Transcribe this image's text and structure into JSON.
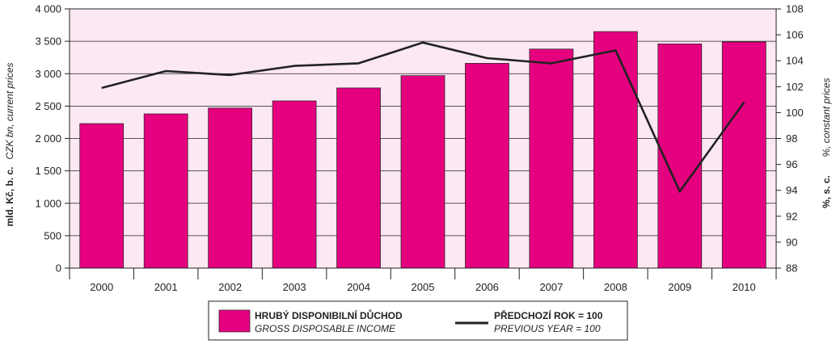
{
  "chart_data": {
    "type": "bar",
    "categories": [
      "2000",
      "2001",
      "2002",
      "2003",
      "2004",
      "2005",
      "2006",
      "2007",
      "2008",
      "2009",
      "2010"
    ],
    "series": [
      {
        "name": "HRUBÝ DISPONIBILNÍ DŮCHOD",
        "name_en": "GROSS DISPOSABLE INCOME",
        "type": "bar",
        "axis": "left",
        "values": [
          2230,
          2380,
          2470,
          2580,
          2780,
          2970,
          3160,
          3380,
          3650,
          3460,
          3490
        ]
      },
      {
        "name": "PŘEDCHOZÍ ROK = 100",
        "name_en": "PREVIOUS YEAR = 100",
        "type": "line",
        "axis": "right",
        "values": [
          101.9,
          103.2,
          102.9,
          103.6,
          103.8,
          105.4,
          104.2,
          103.8,
          104.8,
          93.9,
          100.8
        ]
      }
    ],
    "y_left": {
      "label": "mld. Kč, b. c.",
      "label_en": "CZK bn, current prices",
      "ylim": [
        0,
        4000
      ],
      "ticks": [
        "0",
        "500",
        "1 000",
        "1 500",
        "2 000",
        "2 500",
        "3 000",
        "3 500",
        "4 000"
      ],
      "tick_values": [
        0,
        500,
        1000,
        1500,
        2000,
        2500,
        3000,
        3500,
        4000
      ]
    },
    "y_right": {
      "label": "%, s. c.",
      "label_en": "%, constant prices",
      "ylim": [
        88,
        108
      ],
      "ticks": [
        "88",
        "90",
        "92",
        "94",
        "96",
        "98",
        "100",
        "102",
        "104",
        "106",
        "108"
      ],
      "tick_values": [
        88,
        90,
        92,
        94,
        96,
        98,
        100,
        102,
        104,
        106,
        108
      ]
    },
    "grid": true,
    "legend_position": "bottom-center",
    "colors": {
      "bar": "#e4007f",
      "bar_stroke": "#222222",
      "line": "#222222",
      "plot_bg": "#fbe8f2",
      "grid": "#222222"
    }
  }
}
